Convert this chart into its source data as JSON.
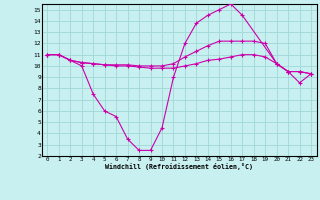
{
  "xlabel": "Windchill (Refroidissement éolien,°C)",
  "bg_color": "#c8f0f0",
  "grid_color": "#a0d8d8",
  "line_color": "#cc00aa",
  "xlim": [
    -0.5,
    23.5
  ],
  "ylim": [
    2,
    15.5
  ],
  "xticks": [
    0,
    1,
    2,
    3,
    4,
    5,
    6,
    7,
    8,
    9,
    10,
    11,
    12,
    13,
    14,
    15,
    16,
    17,
    18,
    19,
    20,
    21,
    22,
    23
  ],
  "yticks": [
    2,
    3,
    4,
    5,
    6,
    7,
    8,
    9,
    10,
    11,
    12,
    13,
    14,
    15
  ],
  "line1_x": [
    0,
    1,
    2,
    3,
    4,
    5,
    6,
    7,
    8,
    9,
    10,
    11,
    12,
    13,
    14,
    15,
    16,
    17,
    20,
    21,
    22,
    23
  ],
  "line1_y": [
    11,
    11,
    10.5,
    10,
    7.5,
    6,
    5.5,
    3.5,
    2.5,
    2.5,
    4.5,
    9.0,
    12.0,
    13.8,
    14.5,
    15.0,
    15.5,
    14.5,
    10.2,
    9.5,
    8.5,
    9.3
  ],
  "line2_x": [
    0,
    1,
    2,
    3,
    4,
    5,
    6,
    7,
    8,
    9,
    10,
    11,
    12,
    13,
    14,
    15,
    16,
    17,
    18,
    19,
    20,
    21,
    22,
    23
  ],
  "line2_y": [
    11,
    11,
    10.5,
    10.3,
    10.2,
    10.1,
    10.1,
    10.1,
    10.0,
    10.0,
    10.0,
    10.2,
    10.8,
    11.3,
    11.8,
    12.2,
    12.2,
    12.2,
    12.2,
    12.0,
    10.2,
    9.5,
    9.5,
    9.3
  ],
  "line3_x": [
    0,
    1,
    2,
    3,
    4,
    5,
    6,
    7,
    8,
    9,
    10,
    11,
    12,
    13,
    14,
    15,
    16,
    17,
    18,
    19,
    20,
    21,
    22,
    23
  ],
  "line3_y": [
    11,
    11,
    10.5,
    10.3,
    10.2,
    10.1,
    10.0,
    10.0,
    9.9,
    9.8,
    9.8,
    9.8,
    10.0,
    10.2,
    10.5,
    10.6,
    10.8,
    11.0,
    11.0,
    10.8,
    10.2,
    9.5,
    9.5,
    9.3
  ]
}
